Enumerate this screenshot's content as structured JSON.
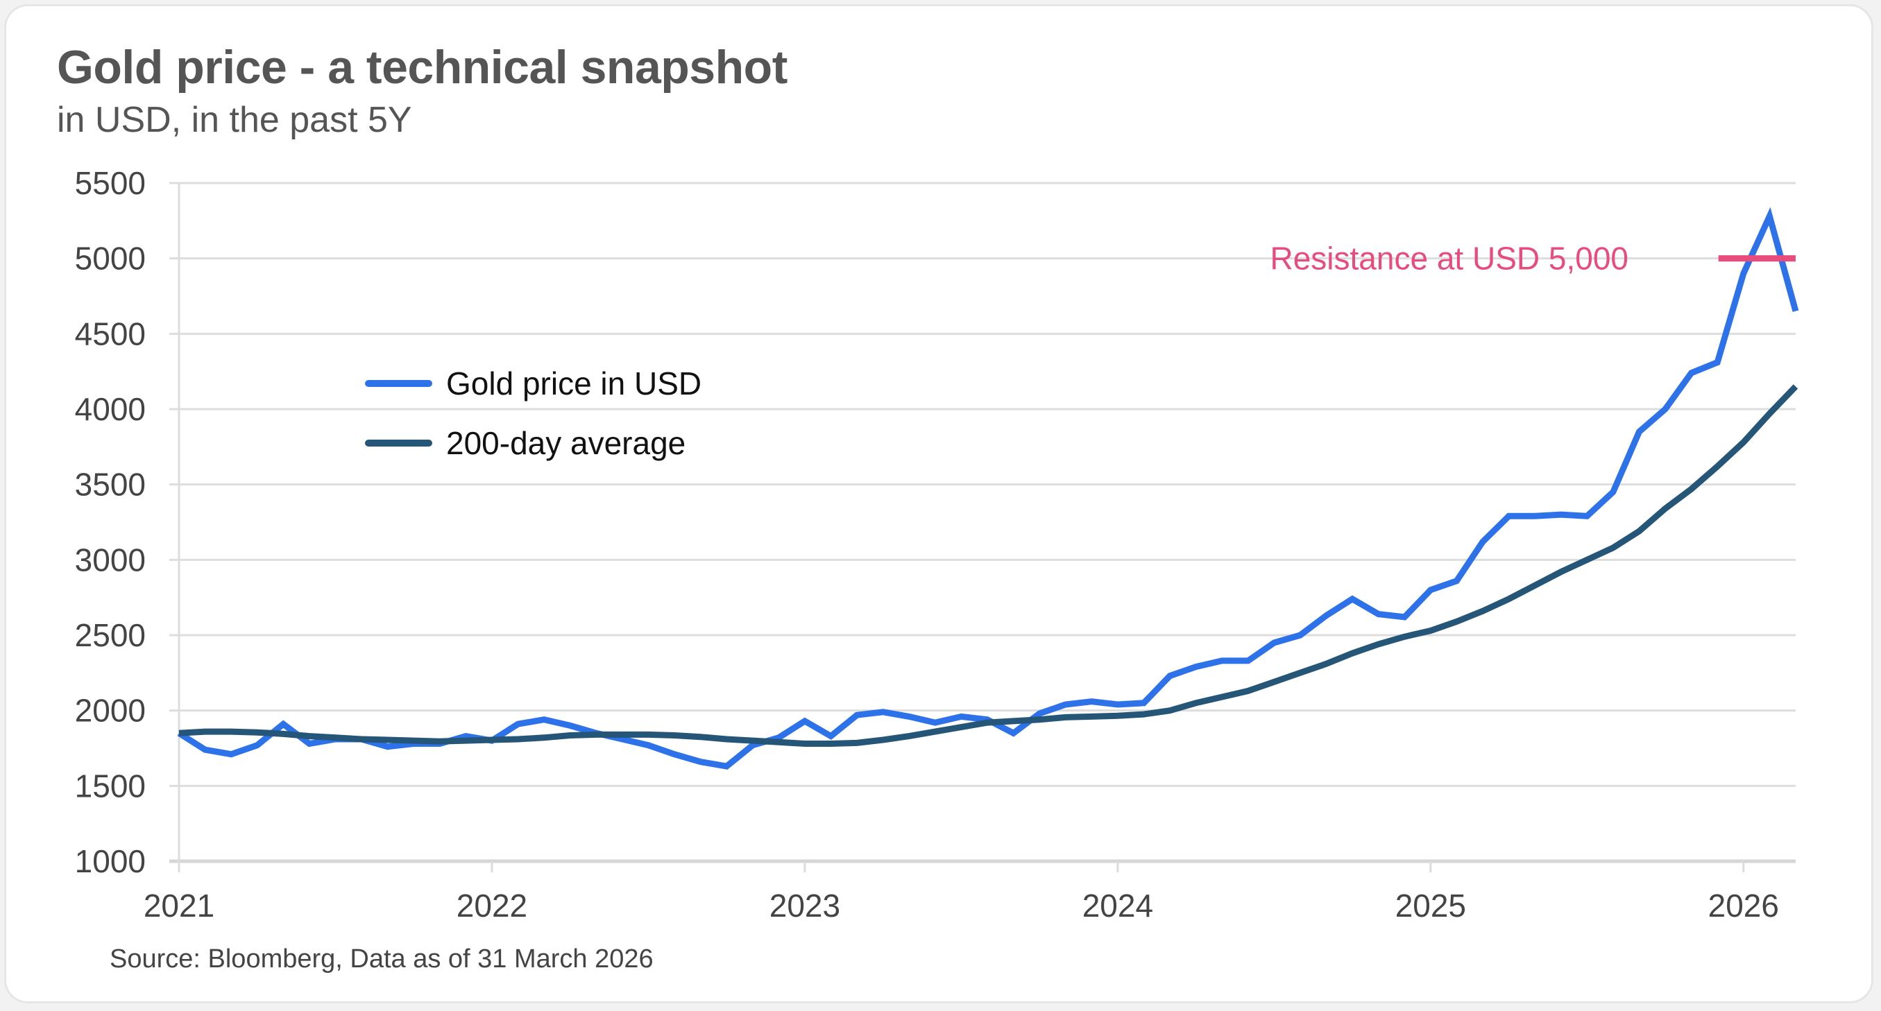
{
  "header": {
    "title": "Gold price - a technical snapshot",
    "subtitle": "in USD, in the past 5Y"
  },
  "footer": {
    "source": "Source: Bloomberg, Data as of 31 March 2026"
  },
  "colors": {
    "gold_price": "#2e72ea",
    "average": "#255677",
    "resistance": "#e84c7d",
    "grid": "#dddddd",
    "axis_text": "#444444"
  },
  "chart_data": {
    "type": "line",
    "title": "Gold price - a technical snapshot",
    "subtitle": "in USD, in the past 5Y",
    "xlabel": "",
    "ylabel": "",
    "ylim": [
      1000,
      5500
    ],
    "yticks": [
      "1000",
      "1500",
      "2000",
      "2500",
      "3000",
      "3500",
      "4000",
      "4500",
      "5000",
      "5500"
    ],
    "ytick_values": [
      1000,
      1500,
      2000,
      2500,
      3000,
      3500,
      4000,
      4500,
      5000,
      5500
    ],
    "xlim": [
      2021.0,
      2026.1667
    ],
    "xticks": [
      "2021",
      "2022",
      "2023",
      "2024",
      "2025",
      "2026"
    ],
    "xtick_values": [
      2021,
      2022,
      2023,
      2024,
      2025,
      2026
    ],
    "grid": true,
    "legend_position": "upper-left-center",
    "x_frequency": "monthly, Jan 2021 to Mar 2026",
    "series": [
      {
        "name": "Gold price in USD",
        "color": "#2e72ea",
        "values": [
          1850,
          1740,
          1710,
          1770,
          1910,
          1780,
          1810,
          1810,
          1760,
          1780,
          1780,
          1830,
          1800,
          1910,
          1940,
          1900,
          1850,
          1810,
          1770,
          1710,
          1660,
          1630,
          1770,
          1820,
          1930,
          1830,
          1970,
          1990,
          1960,
          1920,
          1960,
          1940,
          1850,
          1980,
          2040,
          2060,
          2040,
          2050,
          2230,
          2290,
          2330,
          2330,
          2450,
          2500,
          2630,
          2740,
          2640,
          2620,
          2800,
          2860,
          3120,
          3290,
          3290,
          3300,
          3290,
          3450,
          3850,
          4000,
          4240,
          4310,
          4900,
          5280,
          4650
        ]
      },
      {
        "name": "200-day average",
        "color": "#255677",
        "values": [
          1850,
          1860,
          1860,
          1855,
          1845,
          1830,
          1820,
          1810,
          1805,
          1800,
          1795,
          1800,
          1805,
          1810,
          1820,
          1835,
          1840,
          1840,
          1840,
          1835,
          1825,
          1810,
          1800,
          1790,
          1780,
          1780,
          1785,
          1805,
          1830,
          1860,
          1890,
          1920,
          1930,
          1940,
          1955,
          1960,
          1965,
          1975,
          2000,
          2050,
          2090,
          2130,
          2190,
          2250,
          2310,
          2380,
          2440,
          2490,
          2530,
          2590,
          2660,
          2740,
          2830,
          2920,
          3000,
          3080,
          3190,
          3340,
          3470,
          3620,
          3780,
          3970,
          4150
        ]
      }
    ],
    "annotations": [
      {
        "text": "Resistance at USD 5,000",
        "type": "horizontal-segment",
        "y": 5000,
        "x_from": 2025.92,
        "x_to": 2026.1667,
        "color": "#e84c7d"
      }
    ]
  }
}
